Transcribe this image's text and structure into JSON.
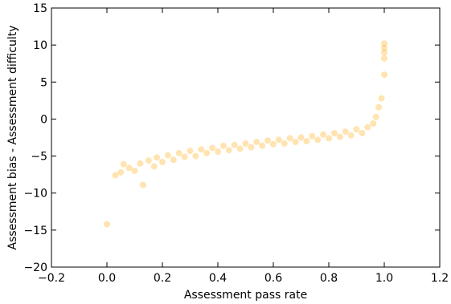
{
  "chart_data": {
    "type": "scatter",
    "title": "",
    "xlabel": "Assessment pass rate",
    "ylabel": "Assessment bias - Assessment difficulty",
    "xlim": [
      -0.2,
      1.2
    ],
    "ylim": [
      -20,
      15
    ],
    "xticks": [
      -0.2,
      0.0,
      0.2,
      0.4,
      0.6,
      0.8,
      1.0,
      1.2
    ],
    "xtick_labels": [
      "−0.2",
      "0.0",
      "0.2",
      "0.4",
      "0.6",
      "0.8",
      "1.0",
      "1.2"
    ],
    "yticks": [
      -20,
      -15,
      -10,
      -5,
      0,
      5,
      10,
      15
    ],
    "ytick_labels": [
      "−20",
      "−15",
      "−10",
      "−5",
      "0",
      "5",
      "10",
      "15"
    ],
    "grid": false,
    "series": [
      {
        "color": "#FFA500",
        "opacity": 0.3,
        "points": [
          [
            0.0,
            -14.2
          ],
          [
            0.03,
            -7.6
          ],
          [
            0.05,
            -7.2
          ],
          [
            0.06,
            -6.1
          ],
          [
            0.08,
            -6.6
          ],
          [
            0.1,
            -7.0
          ],
          [
            0.12,
            -6.0
          ],
          [
            0.13,
            -8.9
          ],
          [
            0.15,
            -5.6
          ],
          [
            0.17,
            -6.4
          ],
          [
            0.18,
            -5.2
          ],
          [
            0.2,
            -5.8
          ],
          [
            0.22,
            -4.9
          ],
          [
            0.24,
            -5.5
          ],
          [
            0.26,
            -4.6
          ],
          [
            0.28,
            -5.1
          ],
          [
            0.3,
            -4.3
          ],
          [
            0.32,
            -5.0
          ],
          [
            0.34,
            -4.1
          ],
          [
            0.36,
            -4.6
          ],
          [
            0.38,
            -3.9
          ],
          [
            0.4,
            -4.4
          ],
          [
            0.42,
            -3.6
          ],
          [
            0.44,
            -4.2
          ],
          [
            0.46,
            -3.5
          ],
          [
            0.48,
            -4.0
          ],
          [
            0.5,
            -3.3
          ],
          [
            0.52,
            -3.8
          ],
          [
            0.54,
            -3.1
          ],
          [
            0.56,
            -3.6
          ],
          [
            0.58,
            -2.9
          ],
          [
            0.6,
            -3.4
          ],
          [
            0.62,
            -2.8
          ],
          [
            0.64,
            -3.3
          ],
          [
            0.66,
            -2.6
          ],
          [
            0.68,
            -3.1
          ],
          [
            0.7,
            -2.5
          ],
          [
            0.72,
            -3.0
          ],
          [
            0.74,
            -2.3
          ],
          [
            0.76,
            -2.8
          ],
          [
            0.78,
            -2.1
          ],
          [
            0.8,
            -2.6
          ],
          [
            0.82,
            -1.9
          ],
          [
            0.84,
            -2.4
          ],
          [
            0.86,
            -1.7
          ],
          [
            0.88,
            -2.2
          ],
          [
            0.9,
            -1.4
          ],
          [
            0.92,
            -1.9
          ],
          [
            0.94,
            -1.1
          ],
          [
            0.96,
            -0.6
          ],
          [
            0.97,
            0.3
          ],
          [
            0.98,
            1.6
          ],
          [
            0.99,
            2.8
          ],
          [
            1.0,
            6.0
          ],
          [
            1.0,
            8.2
          ],
          [
            1.0,
            9.0
          ],
          [
            1.0,
            9.6
          ],
          [
            1.0,
            10.2
          ]
        ]
      }
    ]
  }
}
